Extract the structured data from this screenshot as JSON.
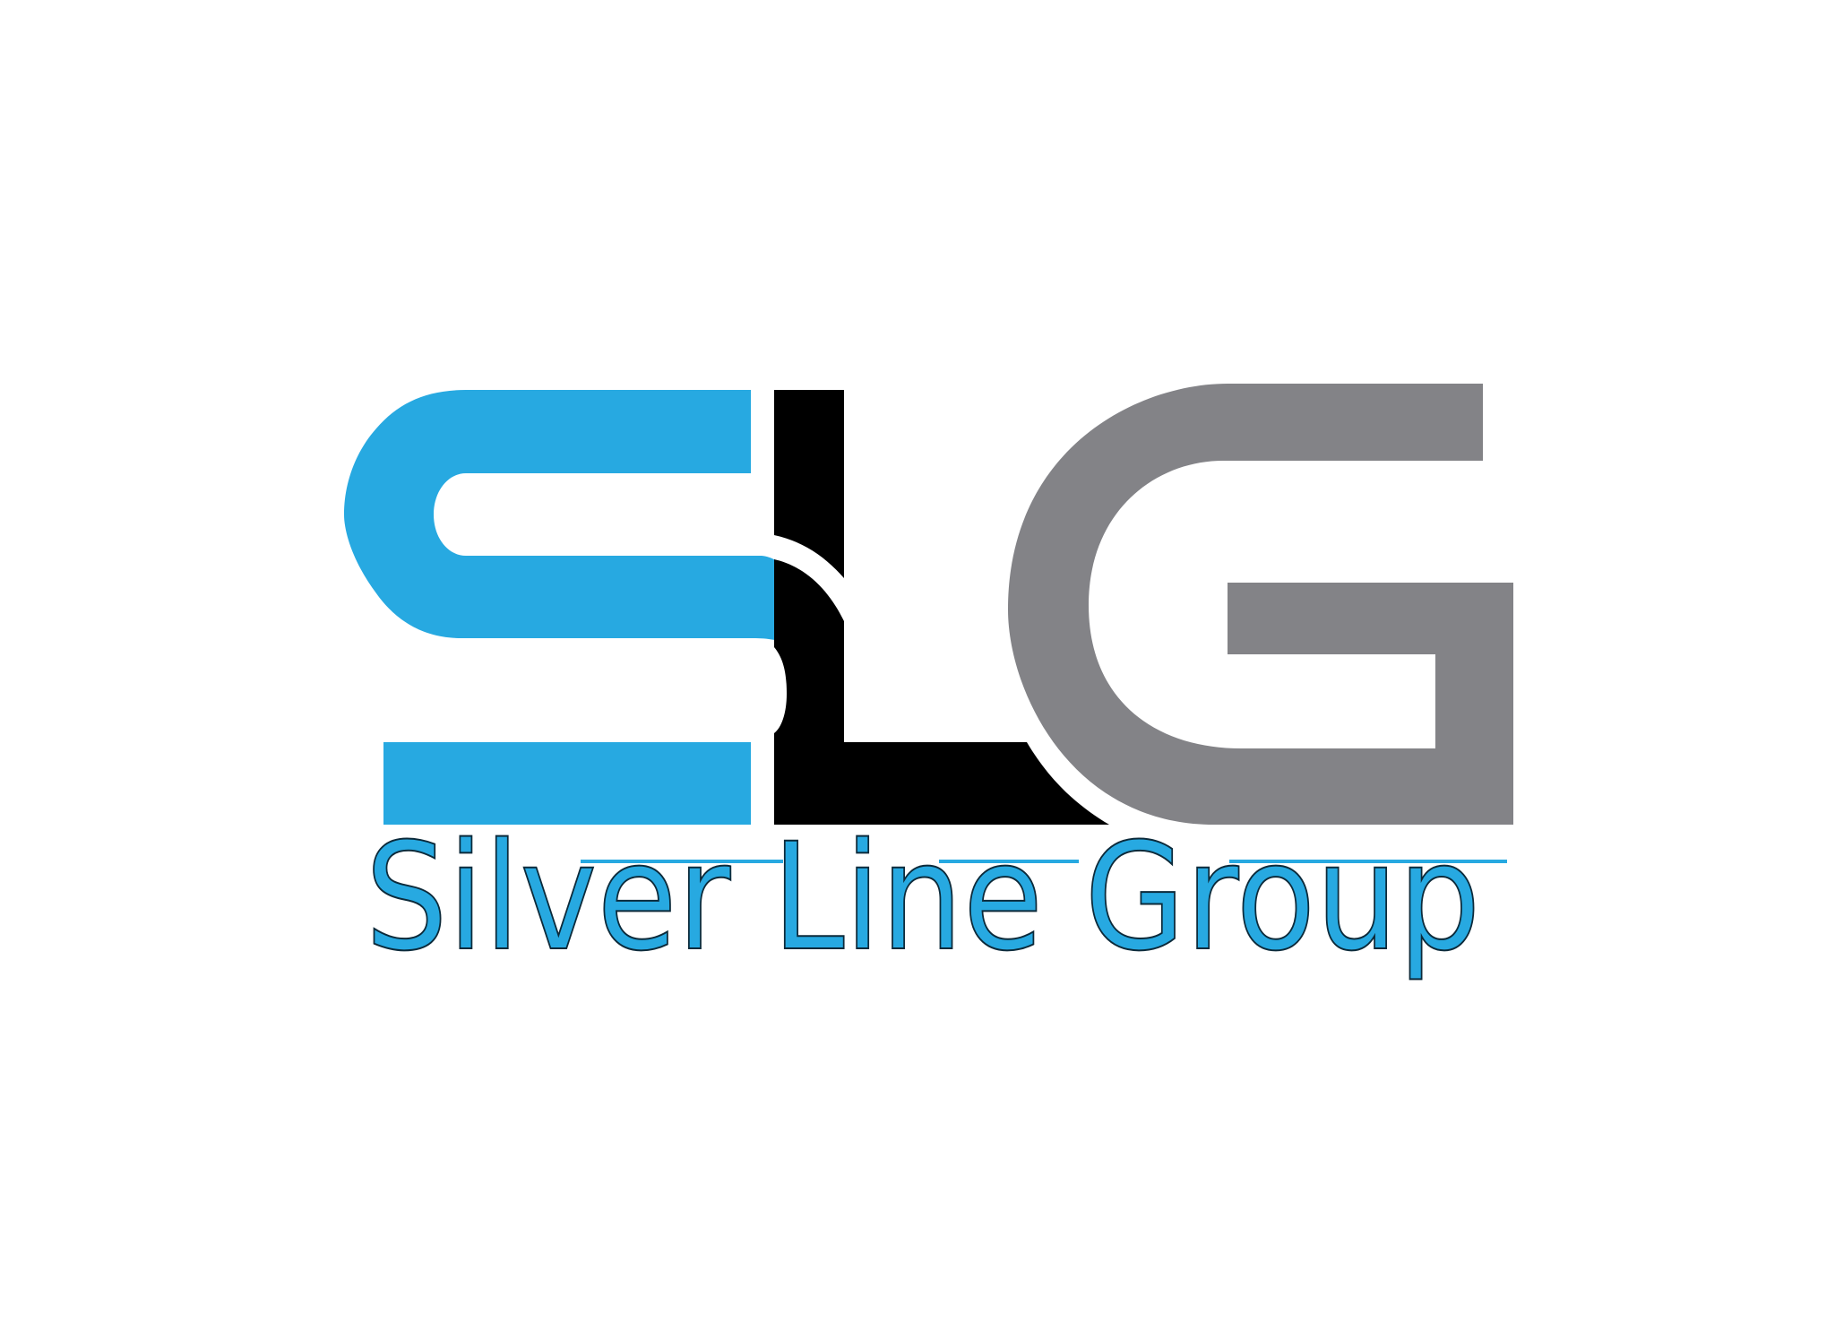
{
  "logo": {
    "monogram": [
      "S",
      "L",
      "G"
    ],
    "wordmark": "Silver Line Group"
  },
  "colors": {
    "background": "#ffffff",
    "blue": "#27a9e1",
    "black": "#000000",
    "gray": "#838387",
    "outline": "#0c2a3a"
  }
}
